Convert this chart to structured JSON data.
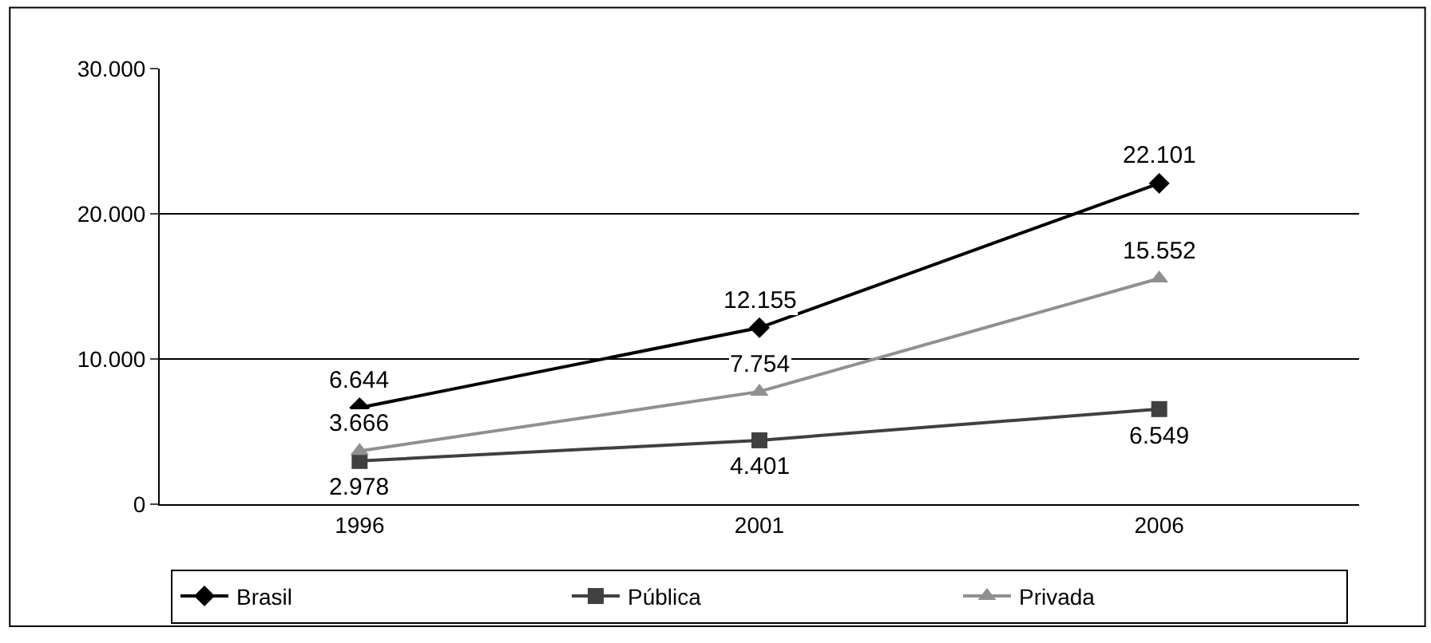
{
  "chart_data": {
    "type": "line",
    "categories": [
      "1996",
      "2001",
      "2006"
    ],
    "series": [
      {
        "name": "Brasil",
        "color": "#000000",
        "marker": "diamond",
        "values": [
          6644,
          12155,
          22101
        ],
        "value_labels": [
          "6.644",
          "12.155",
          "22.101"
        ]
      },
      {
        "name": "Pública",
        "color": "#404040",
        "marker": "square",
        "values": [
          2978,
          4401,
          6549
        ],
        "value_labels": [
          "2.978",
          "4.401",
          "6.549"
        ]
      },
      {
        "name": "Privada",
        "color": "#909090",
        "marker": "triangle",
        "values": [
          3666,
          7754,
          15552
        ],
        "value_labels": [
          "3.666",
          "7.754",
          "15.552"
        ]
      }
    ],
    "ylim": [
      0,
      30000
    ],
    "yticks": [
      0,
      {
        "value": 10000,
        "label": "10.000"
      },
      {
        "value": 20000,
        "label": "20.000"
      },
      {
        "value": 30000,
        "label": "30.000"
      }
    ],
    "grid": "y",
    "legend": "bottom",
    "line_style": "solid"
  }
}
